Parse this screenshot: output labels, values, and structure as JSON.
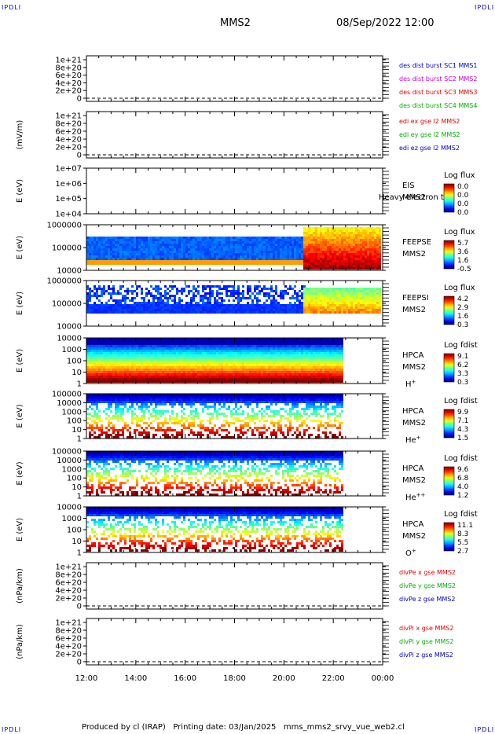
{
  "corner_label": "IPDLI",
  "header": {
    "mission": "MMS2",
    "datetime": "08/Sep/2022 12:00"
  },
  "footer": {
    "text": "Produced by cl (IRAP)   Printing date: 03/Jan/2025   mms_mms2_srvy_vue_web2.cl"
  },
  "time_axis": {
    "ticks": [
      "12:00",
      "14:00",
      "16:00",
      "18:00",
      "20:00",
      "22:00",
      "00:00"
    ],
    "start_hour": 12,
    "end_hour": 24
  },
  "colors": {
    "red": "#e00000",
    "magenta": "#cc00cc",
    "green": "#00b000",
    "blue": "#0000c0",
    "cyan": "#00c0ff"
  },
  "chart_data": [
    {
      "type": "line",
      "ylabel": "",
      "yticks": [
        "1e+21",
        "8e+20",
        "6e+20",
        "4e+20",
        "2e+20",
        "0"
      ],
      "series": [
        {
          "name": "des dist burst SC1 MMS1",
          "color": "#0000c0"
        },
        {
          "name": "des dist burst SC2 MMS2",
          "color": "#cc00cc"
        },
        {
          "name": "des dist burst SC3 MMS3",
          "color": "#e00000"
        },
        {
          "name": "des dist burst SC4 MMS4",
          "color": "#00b000"
        }
      ]
    },
    {
      "type": "line",
      "ylabel": "(mV/m)",
      "yticks": [
        "1e+21",
        "8e+20",
        "6e+20",
        "4e+20",
        "2e+20",
        "0"
      ],
      "series": [
        {
          "name": "edi ex gse l2 MMS2",
          "color": "#e00000"
        },
        {
          "name": "edi ey gse l2 MMS2",
          "color": "#00b000"
        },
        {
          "name": "edi ez gse l2 MMS2",
          "color": "#0000c0"
        }
      ]
    },
    {
      "type": "heatmap",
      "ylabel": "E (eV)",
      "yticks": [
        "1e+07",
        "1e+06",
        "1e+05",
        "1e+04"
      ],
      "instrument": [
        "EIS",
        "MMS2"
      ],
      "overlay": "Heavy electron te",
      "colorbar": {
        "title": "Log flux",
        "ticks": [
          "0.0",
          "0.0",
          "0.0",
          "0.0"
        ]
      }
    },
    {
      "type": "heatmap",
      "ylabel": "E (eV)",
      "yticks": [
        "1000000",
        "100000",
        "10000"
      ],
      "instrument": [
        "FEEPSE",
        "MMS2"
      ],
      "colorbar": {
        "title": "Log flux",
        "ticks": [
          "5.7",
          "3.6",
          "1.6",
          "-0.5"
        ]
      }
    },
    {
      "type": "heatmap",
      "ylabel": "E (eV)",
      "yticks": [
        "1000000",
        "100000",
        "10000"
      ],
      "instrument": [
        "FEEPSI",
        "MMS2"
      ],
      "colorbar": {
        "title": "Log flux",
        "ticks": [
          "4.2",
          "2.9",
          "1.6",
          "0.3"
        ]
      }
    },
    {
      "type": "heatmap",
      "ylabel": "E (eV)",
      "yticks": [
        "10000",
        "1000",
        "100",
        "10",
        "1"
      ],
      "instrument": [
        "HPCA",
        "MMS2"
      ],
      "species": {
        "base": "H",
        "sup": "+"
      },
      "colorbar": {
        "title": "Log fdist",
        "ticks": [
          "9.1",
          "6.2",
          "3.3",
          "0.3"
        ]
      }
    },
    {
      "type": "heatmap",
      "ylabel": "E (eV)",
      "yticks": [
        "100000",
        "10000",
        "1000",
        "100",
        "10",
        "1"
      ],
      "instrument": [
        "HPCA",
        "MMS2"
      ],
      "species": {
        "base": "He",
        "sup": "+"
      },
      "colorbar": {
        "title": "Log fdist",
        "ticks": [
          "9.9",
          "7.1",
          "4.3",
          "1.5"
        ]
      }
    },
    {
      "type": "heatmap",
      "ylabel": "E (eV)",
      "yticks": [
        "100000",
        "10000",
        "1000",
        "100",
        "10",
        "1"
      ],
      "instrument": [
        "HPCA",
        "MMS2"
      ],
      "species": {
        "base": "He",
        "sup": "++"
      },
      "colorbar": {
        "title": "Log fdist",
        "ticks": [
          "9.6",
          "6.8",
          "4.0",
          "1.2"
        ]
      }
    },
    {
      "type": "heatmap",
      "ylabel": "E (eV)",
      "yticks": [
        "10000",
        "1000",
        "100",
        "10",
        "1"
      ],
      "instrument": [
        "HPCA",
        "MMS2"
      ],
      "species": {
        "base": "O",
        "sup": "+"
      },
      "colorbar": {
        "title": "Log fdist",
        "ticks": [
          "11.1",
          "8.3",
          "5.5",
          "2.7"
        ]
      }
    },
    {
      "type": "line",
      "ylabel": "(nPa/km)",
      "yticks": [
        "1e+21",
        "8e+20",
        "6e+20",
        "4e+20",
        "2e+20",
        "0"
      ],
      "series": [
        {
          "name": "divPe x gse MMS2",
          "color": "#e00000"
        },
        {
          "name": "divPe y gse MMS2",
          "color": "#00b000"
        },
        {
          "name": "divPe z gse MMS2",
          "color": "#0000c0"
        }
      ]
    },
    {
      "type": "line",
      "ylabel": "(nPa/km)",
      "yticks": [
        "1e+21",
        "8e+20",
        "6e+20",
        "4e+20",
        "2e+20",
        "0"
      ],
      "series": [
        {
          "name": "divPi x gse MMS2",
          "color": "#e00000"
        },
        {
          "name": "divPi y gse MMS2",
          "color": "#00b000"
        },
        {
          "name": "divPi z gse MMS2",
          "color": "#0000c0"
        }
      ]
    }
  ]
}
